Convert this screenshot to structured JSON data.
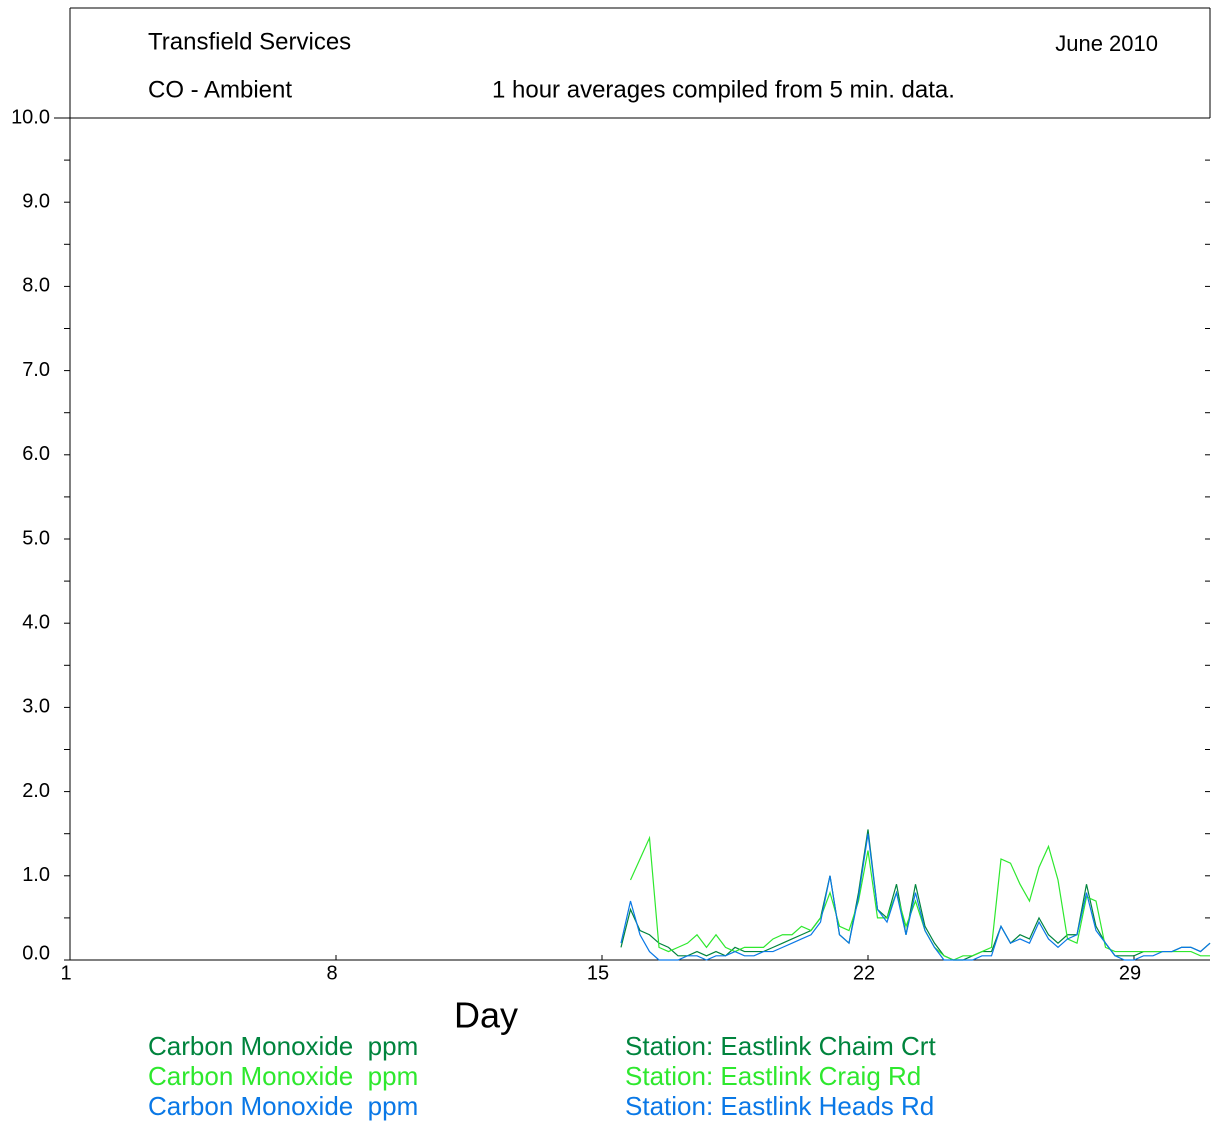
{
  "chart_data": {
    "type": "line",
    "title": "Transfield Services",
    "date": "June 2010",
    "subtitle": "CO - Ambient",
    "note": "1 hour averages compiled from 5 min. data.",
    "x_label": "Day",
    "xlim": [
      1,
      31
    ],
    "xticks": [
      1,
      8,
      15,
      22,
      29
    ],
    "ylim": [
      0,
      10
    ],
    "yticks": [
      {
        "value": 0,
        "label": "0.0"
      },
      {
        "value": 1,
        "label": "1.0"
      },
      {
        "value": 2,
        "label": "2.0"
      },
      {
        "value": 3,
        "label": "3.0"
      },
      {
        "value": 4,
        "label": "4.0"
      },
      {
        "value": 5,
        "label": "5.0"
      },
      {
        "value": 6,
        "label": "6.0"
      },
      {
        "value": 7,
        "label": "7.0"
      },
      {
        "value": 8,
        "label": "8.0"
      },
      {
        "value": 9,
        "label": "9.0"
      },
      {
        "value": 10,
        "label": "10.0"
      }
    ],
    "x": [
      15.5,
      15.75,
      16,
      16.25,
      16.5,
      16.75,
      17,
      17.25,
      17.5,
      17.75,
      18,
      18.25,
      18.5,
      18.75,
      19,
      19.25,
      19.5,
      19.75,
      20,
      20.25,
      20.5,
      20.75,
      21,
      21.25,
      21.5,
      21.75,
      22,
      22.25,
      22.5,
      22.75,
      23,
      23.25,
      23.5,
      23.75,
      24,
      24.25,
      24.5,
      24.75,
      25,
      25.25,
      25.5,
      25.75,
      26,
      26.25,
      26.5,
      26.75,
      27,
      27.25,
      27.5,
      27.75,
      28,
      28.25,
      28.5,
      28.75,
      29,
      29.25,
      29.5,
      29.75,
      30,
      30.25,
      30.5,
      30.75,
      31
    ],
    "series": [
      {
        "name": "Carbon Monoxide  ppm",
        "station": "Station: Eastlink Chaim Crt",
        "color": "#00843d",
        "values": [
          0.15,
          0.6,
          0.35,
          0.3,
          0.2,
          0.15,
          0.05,
          0.05,
          0.1,
          0.05,
          0.1,
          0.05,
          0.15,
          0.1,
          0.1,
          0.1,
          0.15,
          0.2,
          0.25,
          0.3,
          0.35,
          0.5,
          1.0,
          0.3,
          0.2,
          0.8,
          1.55,
          0.6,
          0.5,
          0.9,
          0.3,
          0.9,
          0.4,
          0.2,
          0.05,
          0.0,
          0.0,
          0.05,
          0.1,
          0.1,
          0.4,
          0.2,
          0.3,
          0.25,
          0.5,
          0.3,
          0.2,
          0.3,
          0.3,
          0.9,
          0.4,
          0.2,
          0.05,
          0.05,
          0.05,
          0.1,
          0.1,
          0.1,
          0.1,
          0.15,
          0.15,
          0.1,
          0.2
        ]
      },
      {
        "name": "Carbon Monoxide  ppm",
        "station": "Station: Eastlink Craig Rd",
        "color": "#2ee82e",
        "values": [
          null,
          0.95,
          1.2,
          1.45,
          0.15,
          0.1,
          0.15,
          0.2,
          0.3,
          0.15,
          0.3,
          0.15,
          0.1,
          0.15,
          0.15,
          0.15,
          0.25,
          0.3,
          0.3,
          0.4,
          0.35,
          0.5,
          0.8,
          0.4,
          0.35,
          0.7,
          1.3,
          0.5,
          0.5,
          0.8,
          0.4,
          0.7,
          0.35,
          0.15,
          0.05,
          0.0,
          0.05,
          0.05,
          0.1,
          0.15,
          1.2,
          1.15,
          0.9,
          0.7,
          1.1,
          1.35,
          0.95,
          0.25,
          0.2,
          0.75,
          0.7,
          0.15,
          0.1,
          0.1,
          0.1,
          0.1,
          0.1,
          0.1,
          0.1,
          0.1,
          0.1,
          0.05,
          0.05
        ]
      },
      {
        "name": "Carbon Monoxide  ppm",
        "station": "Station: Eastlink Heads Rd",
        "color": "#0a78e6",
        "values": [
          0.2,
          0.7,
          0.3,
          0.1,
          0.0,
          0.0,
          0.0,
          0.05,
          0.05,
          0.0,
          0.05,
          0.05,
          0.1,
          0.05,
          0.05,
          0.1,
          0.1,
          0.15,
          0.2,
          0.25,
          0.3,
          0.45,
          1.0,
          0.3,
          0.2,
          0.75,
          1.5,
          0.6,
          0.45,
          0.8,
          0.3,
          0.8,
          0.35,
          0.15,
          0.0,
          0.0,
          0.0,
          0.0,
          0.05,
          0.05,
          0.4,
          0.2,
          0.25,
          0.2,
          0.45,
          0.25,
          0.15,
          0.25,
          0.3,
          0.8,
          0.35,
          0.2,
          0.05,
          0.0,
          0.0,
          0.05,
          0.05,
          0.1,
          0.1,
          0.15,
          0.15,
          0.1,
          0.2
        ]
      }
    ]
  }
}
